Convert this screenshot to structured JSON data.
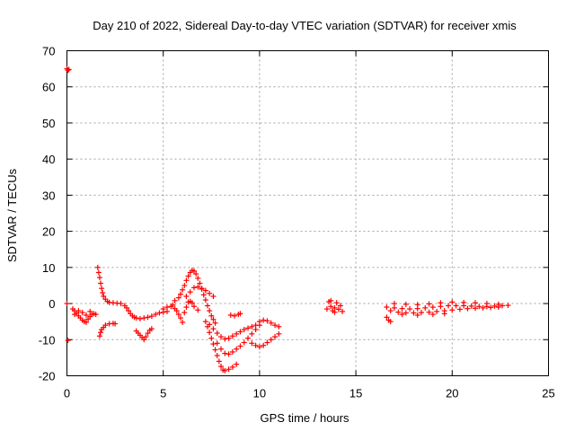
{
  "chart_data": {
    "type": "scatter",
    "title": "Day 210 of 2022, Sidereal Day-to-day VTEC variation (SDTVAR) for receiver xmis",
    "xlabel": "GPS time / hours",
    "ylabel": "SDTVAR / TECUs",
    "xlim": [
      0,
      25
    ],
    "ylim": [
      -20,
      70
    ],
    "xticks": [
      "0",
      "5",
      "10",
      "15",
      "20",
      "25"
    ],
    "yticks": [
      "-20",
      "-10",
      "0",
      "10",
      "20",
      "30",
      "40",
      "50",
      "60",
      "70"
    ],
    "grid": true,
    "marker": "plus",
    "color": "#ff0000",
    "series": [
      {
        "name": "SDTVAR",
        "points": [
          [
            0.0,
            65
          ],
          [
            0.05,
            64.6
          ],
          [
            0.1,
            64.8
          ],
          [
            0.0,
            0.0
          ],
          [
            0.05,
            -10.2
          ],
          [
            0.3,
            -1.5
          ],
          [
            0.4,
            -2.0
          ],
          [
            0.5,
            -2.6
          ],
          [
            0.6,
            -3.4
          ],
          [
            0.7,
            -4.0
          ],
          [
            0.8,
            -4.6
          ],
          [
            0.9,
            -5.0
          ],
          [
            1.0,
            -5.2
          ],
          [
            1.1,
            -4.3
          ],
          [
            1.2,
            -3.6
          ],
          [
            1.3,
            -3.0
          ],
          [
            1.4,
            -2.8
          ],
          [
            1.5,
            -3.0
          ],
          [
            0.4,
            -3.0
          ],
          [
            0.6,
            -2.0
          ],
          [
            0.8,
            -2.5
          ],
          [
            1.0,
            -3.2
          ],
          [
            1.2,
            -2.2
          ],
          [
            1.6,
            10.0
          ],
          [
            1.65,
            8.6
          ],
          [
            1.7,
            7.2
          ],
          [
            1.75,
            5.6
          ],
          [
            1.8,
            4.2
          ],
          [
            1.85,
            3.0
          ],
          [
            1.9,
            2.0
          ],
          [
            2.0,
            1.2
          ],
          [
            2.1,
            0.6
          ],
          [
            2.2,
            0.3
          ],
          [
            2.4,
            0.2
          ],
          [
            2.6,
            0.1
          ],
          [
            2.8,
            0.0
          ],
          [
            3.0,
            -0.6
          ],
          [
            1.7,
            -9.0
          ],
          [
            1.75,
            -8.0
          ],
          [
            1.8,
            -7.2
          ],
          [
            1.9,
            -6.6
          ],
          [
            2.0,
            -6.0
          ],
          [
            2.2,
            -5.6
          ],
          [
            2.4,
            -5.5
          ],
          [
            2.5,
            -5.6
          ],
          [
            3.1,
            -1.2
          ],
          [
            3.2,
            -2.0
          ],
          [
            3.3,
            -2.8
          ],
          [
            3.4,
            -3.4
          ],
          [
            3.5,
            -3.8
          ],
          [
            3.6,
            -4.0
          ],
          [
            3.8,
            -4.2
          ],
          [
            4.0,
            -4.0
          ],
          [
            4.2,
            -3.8
          ],
          [
            4.4,
            -3.5
          ],
          [
            4.6,
            -3.0
          ],
          [
            4.8,
            -2.6
          ],
          [
            5.0,
            -2.4
          ],
          [
            5.2,
            -2.2
          ],
          [
            3.6,
            -7.6
          ],
          [
            3.7,
            -8.2
          ],
          [
            3.8,
            -8.8
          ],
          [
            3.9,
            -9.4
          ],
          [
            4.0,
            -10.0
          ],
          [
            4.1,
            -9.2
          ],
          [
            4.2,
            -8.2
          ],
          [
            4.3,
            -7.4
          ],
          [
            4.4,
            -7.0
          ],
          [
            5.0,
            -1.5
          ],
          [
            5.2,
            -1.0
          ],
          [
            5.4,
            -0.8
          ],
          [
            5.5,
            -0.4
          ],
          [
            5.6,
            -1.4
          ],
          [
            5.7,
            -2.0
          ],
          [
            5.8,
            -3.0
          ],
          [
            5.9,
            -4.0
          ],
          [
            6.0,
            -5.2
          ],
          [
            5.6,
            0.8
          ],
          [
            5.8,
            1.6
          ],
          [
            5.9,
            2.6
          ],
          [
            6.0,
            3.8
          ],
          [
            6.1,
            5.0
          ],
          [
            6.2,
            6.4
          ],
          [
            6.3,
            7.6
          ],
          [
            6.4,
            8.6
          ],
          [
            6.5,
            9.2
          ],
          [
            6.6,
            9.0
          ],
          [
            6.7,
            8.2
          ],
          [
            6.8,
            7.0
          ],
          [
            6.9,
            5.6
          ],
          [
            7.0,
            4.0
          ],
          [
            7.1,
            2.4
          ],
          [
            7.2,
            1.0
          ],
          [
            7.3,
            -0.6
          ],
          [
            7.4,
            -2.0
          ],
          [
            7.5,
            -3.4
          ],
          [
            7.6,
            -4.4
          ],
          [
            7.7,
            -5.4
          ],
          [
            6.2,
            2.0
          ],
          [
            6.4,
            3.2
          ],
          [
            6.6,
            4.4
          ],
          [
            6.8,
            4.6
          ],
          [
            7.0,
            4.2
          ],
          [
            7.2,
            3.6
          ],
          [
            7.4,
            2.8
          ],
          [
            7.6,
            2.0
          ],
          [
            6.1,
            -2.5
          ],
          [
            6.2,
            -1.0
          ],
          [
            6.3,
            0.4
          ],
          [
            6.4,
            0.6
          ],
          [
            6.5,
            0.2
          ],
          [
            6.6,
            -0.8
          ],
          [
            6.8,
            -1.8
          ],
          [
            7.2,
            -5.0
          ],
          [
            7.3,
            -6.4
          ],
          [
            7.4,
            -8.0
          ],
          [
            7.5,
            -9.6
          ],
          [
            7.6,
            -11.2
          ],
          [
            7.7,
            -12.8
          ],
          [
            7.8,
            -14.4
          ],
          [
            7.9,
            -16.0
          ],
          [
            8.0,
            -17.4
          ],
          [
            8.1,
            -18.4
          ],
          [
            8.2,
            -18.6
          ],
          [
            8.4,
            -18.2
          ],
          [
            8.6,
            -17.6
          ],
          [
            8.8,
            -16.8
          ],
          [
            7.4,
            -5.8
          ],
          [
            7.6,
            -7.0
          ],
          [
            7.8,
            -8.2
          ],
          [
            8.0,
            -9.2
          ],
          [
            8.2,
            -9.8
          ],
          [
            8.4,
            -9.6
          ],
          [
            8.6,
            -9.0
          ],
          [
            8.8,
            -8.4
          ],
          [
            9.0,
            -7.8
          ],
          [
            9.2,
            -7.2
          ],
          [
            9.4,
            -6.8
          ],
          [
            9.6,
            -6.4
          ],
          [
            9.8,
            -6.0
          ],
          [
            7.8,
            -11.0
          ],
          [
            8.0,
            -12.6
          ],
          [
            8.2,
            -13.8
          ],
          [
            8.4,
            -14.0
          ],
          [
            8.6,
            -13.4
          ],
          [
            8.8,
            -12.6
          ],
          [
            9.0,
            -11.8
          ],
          [
            9.2,
            -10.8
          ],
          [
            9.4,
            -9.6
          ],
          [
            9.6,
            -8.4
          ],
          [
            9.8,
            -7.2
          ],
          [
            10.0,
            -6.0
          ],
          [
            8.5,
            -3.2
          ],
          [
            8.7,
            -3.4
          ],
          [
            8.9,
            -3.0
          ],
          [
            9.0,
            -2.8
          ],
          [
            9.6,
            -11.0
          ],
          [
            9.8,
            -11.6
          ],
          [
            10.0,
            -12.0
          ],
          [
            10.2,
            -11.6
          ],
          [
            10.4,
            -10.8
          ],
          [
            10.6,
            -10.0
          ],
          [
            10.8,
            -9.2
          ],
          [
            11.0,
            -8.4
          ],
          [
            10.0,
            -5.0
          ],
          [
            10.2,
            -4.6
          ],
          [
            10.4,
            -4.8
          ],
          [
            10.6,
            -5.4
          ],
          [
            10.8,
            -6.0
          ],
          [
            11.0,
            -6.4
          ],
          [
            13.5,
            -1.5
          ],
          [
            13.6,
            0.5
          ],
          [
            13.7,
            -0.8
          ],
          [
            13.8,
            -2.0
          ],
          [
            13.9,
            -1.2
          ],
          [
            14.0,
            0.2
          ],
          [
            14.1,
            -1.6
          ],
          [
            14.2,
            -0.6
          ],
          [
            14.3,
            -2.2
          ],
          [
            13.7,
            0.8
          ],
          [
            13.9,
            -2.4
          ],
          [
            16.6,
            -3.8
          ],
          [
            16.7,
            -4.6
          ],
          [
            16.8,
            -5.0
          ],
          [
            16.6,
            -1.0
          ],
          [
            17.0,
            -1.2
          ],
          [
            17.4,
            -1.4
          ],
          [
            17.8,
            -1.5
          ],
          [
            18.2,
            -1.4
          ],
          [
            18.6,
            -1.2
          ],
          [
            19.0,
            -1.0
          ],
          [
            19.4,
            -0.8
          ],
          [
            19.8,
            -0.6
          ],
          [
            20.2,
            -0.6
          ],
          [
            20.6,
            -0.6
          ],
          [
            21.0,
            -0.7
          ],
          [
            21.4,
            -0.8
          ],
          [
            21.8,
            -0.8
          ],
          [
            22.2,
            -0.7
          ],
          [
            22.6,
            -0.6
          ],
          [
            22.9,
            -0.5
          ],
          [
            16.8,
            -2.0
          ],
          [
            17.2,
            -2.4
          ],
          [
            17.6,
            -2.6
          ],
          [
            18.0,
            -2.6
          ],
          [
            18.4,
            -2.5
          ],
          [
            18.8,
            -2.4
          ],
          [
            19.2,
            -2.2
          ],
          [
            19.6,
            -2.0
          ],
          [
            20.0,
            -1.8
          ],
          [
            20.4,
            -1.6
          ],
          [
            20.8,
            -1.4
          ],
          [
            21.2,
            -1.3
          ],
          [
            21.6,
            -1.2
          ],
          [
            22.0,
            -1.1
          ],
          [
            22.4,
            -1.0
          ],
          [
            17.0,
            0.0
          ],
          [
            17.6,
            -0.2
          ],
          [
            18.2,
            -0.3
          ],
          [
            18.8,
            -0.1
          ],
          [
            19.4,
            0.2
          ],
          [
            20.0,
            0.4
          ],
          [
            20.6,
            0.3
          ],
          [
            21.2,
            0.2
          ],
          [
            21.8,
            0.0
          ],
          [
            22.4,
            -0.2
          ],
          [
            17.4,
            -3.0
          ],
          [
            18.2,
            -3.2
          ],
          [
            19.0,
            -3.0
          ],
          [
            19.6,
            -2.8
          ]
        ]
      }
    ]
  }
}
